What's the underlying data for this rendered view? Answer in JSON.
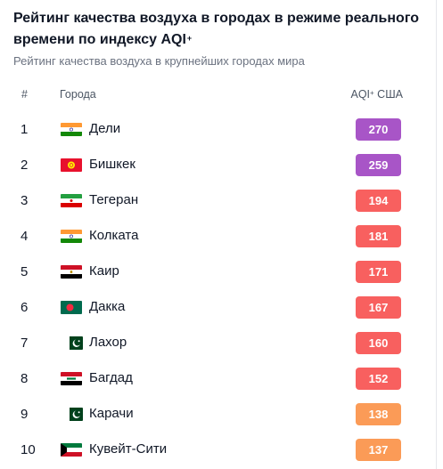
{
  "header": {
    "title": "Рейтинг качества воздуха в городах в режиме реального времени по индексу AQI",
    "title_sup": "+",
    "subtitle": "Рейтинг качества воздуха в крупнейших городах мира"
  },
  "table": {
    "col_rank": "#",
    "col_city": "Города",
    "col_aqi": "AQI",
    "col_aqi_sup": "+",
    "col_aqi_suffix": " США",
    "rows": [
      {
        "rank": "1",
        "city": "Дели",
        "aqi": "270",
        "flag": "india-flag-icon",
        "color": "#a855c7"
      },
      {
        "rank": "2",
        "city": "Бишкек",
        "aqi": "259",
        "flag": "kyrgyzstan-flag-icon",
        "color": "#a855c7"
      },
      {
        "rank": "3",
        "city": "Тегеран",
        "aqi": "194",
        "flag": "iran-flag-icon",
        "color": "#f8605f"
      },
      {
        "rank": "4",
        "city": "Колката",
        "aqi": "181",
        "flag": "india-flag-icon",
        "color": "#f8605f"
      },
      {
        "rank": "5",
        "city": "Каир",
        "aqi": "171",
        "flag": "egypt-flag-icon",
        "color": "#f8605f"
      },
      {
        "rank": "6",
        "city": "Дакка",
        "aqi": "167",
        "flag": "bangladesh-flag-icon",
        "color": "#f8605f"
      },
      {
        "rank": "7",
        "city": "Лахор",
        "aqi": "160",
        "flag": "pakistan-flag-icon",
        "color": "#f8605f"
      },
      {
        "rank": "8",
        "city": "Багдад",
        "aqi": "152",
        "flag": "iraq-flag-icon",
        "color": "#f8605f"
      },
      {
        "rank": "9",
        "city": "Карачи",
        "aqi": "138",
        "flag": "pakistan-flag-icon",
        "color": "#fb9b57"
      },
      {
        "rank": "10",
        "city": "Кувейт-Сити",
        "aqi": "137",
        "flag": "kuwait-flag-icon",
        "color": "#fb9b57"
      }
    ]
  }
}
